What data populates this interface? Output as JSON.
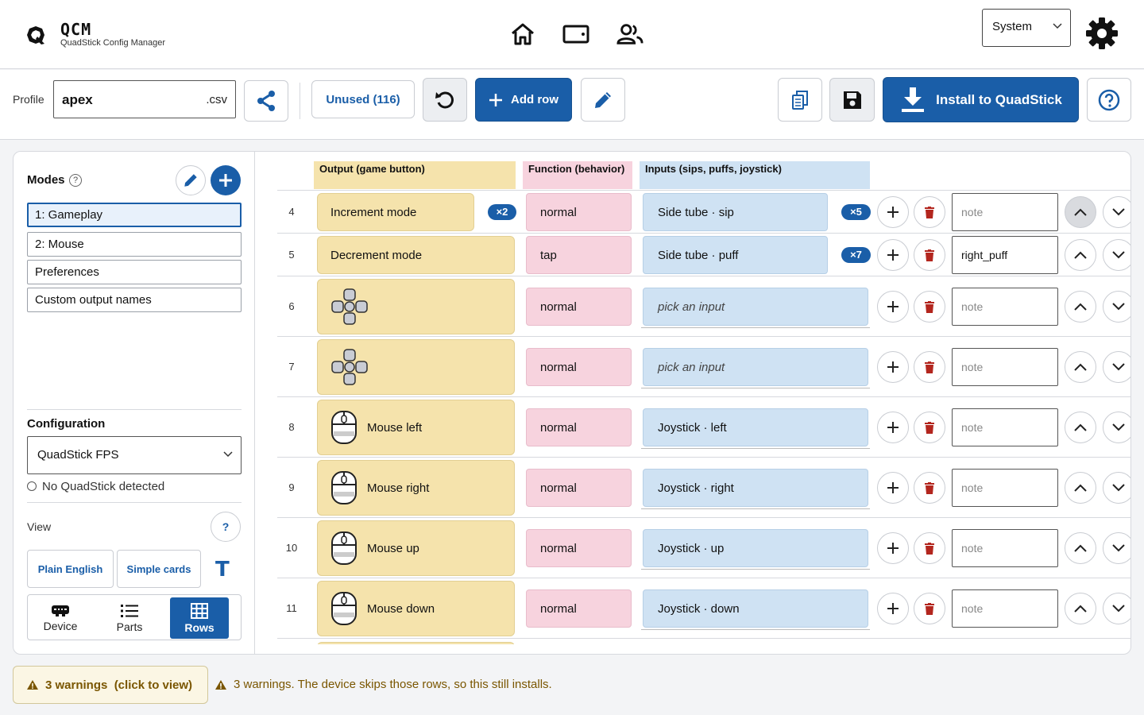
{
  "app": {
    "name": "QCM",
    "subtitle": "QuadStick Config Manager"
  },
  "nav": {
    "icons": [
      "home-icon",
      "tablet-icon",
      "users-icon"
    ]
  },
  "theme": {
    "selected": "System"
  },
  "profile": {
    "label": "Profile",
    "name": "apex",
    "ext": ".csv"
  },
  "toolbar": {
    "unused_label": "Unused (116)",
    "add_row_label": "Add row",
    "install_label": "Install to QuadStick"
  },
  "modes": {
    "title": "Modes",
    "help": "?",
    "items": [
      "1: Gameplay",
      "2: Mouse",
      "Preferences",
      "Custom output names"
    ],
    "active_index": 0
  },
  "configuration": {
    "title": "Configuration",
    "selected": "QuadStick FPS",
    "status": "No QuadStick detected"
  },
  "view": {
    "label": "View",
    "help": "?",
    "plain_english": "Plain English",
    "simple_cards": "Simple cards",
    "text_toggle": "T",
    "segments": [
      "Device",
      "Parts",
      "Rows"
    ],
    "active_segment": "Rows"
  },
  "table": {
    "headers": {
      "output": "Output (game button)",
      "function": "Function (behavior)",
      "inputs": "Inputs (sips, puffs, joystick)"
    },
    "rows": [
      {
        "num": "4",
        "output": "Increment mode",
        "output_icon": "",
        "output_badge": "×2",
        "function": "normal",
        "input": "Side tube · sip",
        "input_badge": "×5",
        "note": "",
        "note_placeholder": "note"
      },
      {
        "num": "5",
        "output": "Decrement mode",
        "output_icon": "",
        "output_badge": "",
        "function": "tap",
        "input": "Side tube · puff",
        "input_badge": "×7",
        "note": "right_puff",
        "note_placeholder": "note"
      },
      {
        "num": "6",
        "output": "",
        "output_icon": "dpad-icon",
        "output_badge": "",
        "function": "normal",
        "input": "pick an input",
        "input_badge": "",
        "note": "",
        "note_placeholder": "note"
      },
      {
        "num": "7",
        "output": "",
        "output_icon": "dpad-icon",
        "output_badge": "",
        "function": "normal",
        "input": "pick an input",
        "input_badge": "",
        "note": "",
        "note_placeholder": "note"
      },
      {
        "num": "8",
        "output": "Mouse left",
        "output_icon": "mouse-icon",
        "output_badge": "",
        "function": "normal",
        "input": "Joystick · left",
        "input_badge": "",
        "note": "",
        "note_placeholder": "note"
      },
      {
        "num": "9",
        "output": "Mouse right",
        "output_icon": "mouse-icon",
        "output_badge": "",
        "function": "normal",
        "input": "Joystick · right",
        "input_badge": "",
        "note": "",
        "note_placeholder": "note"
      },
      {
        "num": "10",
        "output": "Mouse up",
        "output_icon": "mouse-icon",
        "output_badge": "",
        "function": "normal",
        "input": "Joystick · up",
        "input_badge": "",
        "note": "",
        "note_placeholder": "note"
      },
      {
        "num": "11",
        "output": "Mouse down",
        "output_icon": "mouse-icon",
        "output_badge": "",
        "function": "normal",
        "input": "Joystick · down",
        "input_badge": "",
        "note": "",
        "note_placeholder": "note"
      }
    ]
  },
  "footer": {
    "warnings_button": "3 warnings  (click to view)",
    "warnings_message": "3 warnings. The device skips those rows, so this still installs."
  },
  "colors": {
    "accent": "#1a5ea8",
    "output_bg": "#f5e3ac",
    "function_bg": "#f7d3de",
    "input_bg": "#cfe2f3",
    "warning": "#7a5600",
    "delete": "#b3261e"
  }
}
